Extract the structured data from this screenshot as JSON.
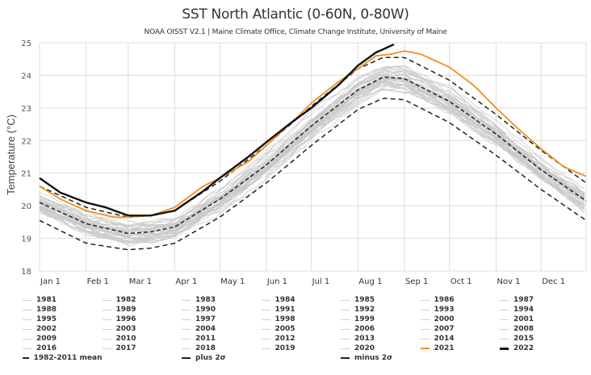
{
  "chart_data": {
    "type": "line",
    "title": "SST North Atlantic (0-60N, 0-80W)",
    "subtitle": "NOAA OISST V2.1 | Maine Climate Office, Climate Change Institute, University of Maine",
    "xlabel": "",
    "ylabel": "Temperature (°C)",
    "ylim": [
      18,
      25
    ],
    "xlim_day_of_year": [
      1,
      365
    ],
    "grid": true,
    "y_ticks": [
      "18",
      "19",
      "20",
      "21",
      "22",
      "23",
      "24",
      "25"
    ],
    "x_ticks": [
      {
        "label": "Jan 1",
        "day": 1
      },
      {
        "label": "Feb 1",
        "day": 32
      },
      {
        "label": "Mar 1",
        "day": 60
      },
      {
        "label": "Apr 1",
        "day": 91
      },
      {
        "label": "May 1",
        "day": 121
      },
      {
        "label": "Jun 1",
        "day": 152
      },
      {
        "label": "Jul 1",
        "day": 182
      },
      {
        "label": "Aug 1",
        "day": 213
      },
      {
        "label": "Sep 1",
        "day": 244
      },
      {
        "label": "Oct 1",
        "day": 274
      },
      {
        "label": "Nov 1",
        "day": 305
      },
      {
        "label": "Dec 1",
        "day": 335
      }
    ],
    "legend_position": "bottom",
    "series": [
      {
        "name": "1982-2011 mean",
        "style": "dashed",
        "color": "#222222",
        "x": [
          1,
          32,
          60,
          75,
          91,
          121,
          152,
          182,
          213,
          230,
          244,
          274,
          305,
          335,
          365
        ],
        "y": [
          20.1,
          19.45,
          19.15,
          19.2,
          19.35,
          20.2,
          21.25,
          22.45,
          23.55,
          23.95,
          23.9,
          23.2,
          22.2,
          21.1,
          20.15
        ]
      },
      {
        "name": "plus 2σ",
        "style": "dash-dot",
        "color": "#222222",
        "x": [
          1,
          32,
          60,
          75,
          91,
          121,
          152,
          182,
          213,
          230,
          244,
          274,
          305,
          335,
          365
        ],
        "y": [
          20.6,
          19.95,
          19.65,
          19.7,
          19.85,
          20.75,
          21.85,
          23.05,
          24.2,
          24.55,
          24.55,
          23.85,
          22.8,
          21.7,
          20.7
        ]
      },
      {
        "name": "minus 2σ",
        "style": "dash-dot",
        "color": "#222222",
        "x": [
          1,
          32,
          60,
          75,
          91,
          121,
          152,
          182,
          213,
          230,
          244,
          274,
          305,
          335,
          365
        ],
        "y": [
          19.55,
          18.85,
          18.65,
          18.7,
          18.85,
          19.65,
          20.7,
          21.85,
          22.95,
          23.3,
          23.25,
          22.55,
          21.55,
          20.5,
          19.55
        ]
      },
      {
        "name": "2021",
        "style": "solid",
        "color": "#f28e1c",
        "x": [
          1,
          15,
          32,
          50,
          60,
          75,
          91,
          110,
          121,
          140,
          152,
          170,
          182,
          200,
          213,
          225,
          235,
          244,
          255,
          274,
          290,
          305,
          320,
          335,
          350,
          365
        ],
        "y": [
          20.6,
          20.2,
          19.85,
          19.65,
          19.65,
          19.7,
          19.95,
          20.6,
          20.85,
          21.35,
          21.85,
          22.6,
          23.15,
          23.8,
          24.2,
          24.6,
          24.65,
          24.75,
          24.65,
          24.25,
          23.7,
          23.0,
          22.35,
          21.75,
          21.2,
          20.9
        ]
      },
      {
        "name": "2022",
        "style": "solid",
        "color": "#111111",
        "x": [
          1,
          15,
          32,
          45,
          60,
          75,
          91,
          110,
          121,
          140,
          152,
          170,
          182,
          200,
          213,
          225,
          237
        ],
        "y": [
          20.85,
          20.4,
          20.1,
          19.95,
          19.7,
          19.7,
          19.85,
          20.45,
          20.85,
          21.5,
          21.95,
          22.6,
          23.0,
          23.7,
          24.3,
          24.7,
          24.95
        ]
      }
    ],
    "background_years": [
      "1981",
      "1982",
      "1983",
      "1984",
      "1985",
      "1986",
      "1987",
      "1988",
      "1989",
      "1990",
      "1991",
      "1992",
      "1993",
      "1994",
      "1995",
      "1996",
      "1997",
      "1998",
      "1999",
      "2000",
      "2001",
      "2002",
      "2003",
      "2004",
      "2005",
      "2006",
      "2007",
      "2008",
      "2009",
      "2010",
      "2011",
      "2012",
      "2013",
      "2014",
      "2015",
      "2016",
      "2017",
      "2018",
      "2019",
      "2020"
    ],
    "background_color": "#c8c8c8"
  },
  "legend": {
    "rows": [
      [
        "1981",
        "1982",
        "1983",
        "1984",
        "1985",
        "1986",
        "1987"
      ],
      [
        "1988",
        "1989",
        "1990",
        "1991",
        "1992",
        "1993",
        "1994"
      ],
      [
        "1995",
        "1996",
        "1997",
        "1998",
        "1999",
        "2000",
        "2001"
      ],
      [
        "2002",
        "2003",
        "2004",
        "2005",
        "2006",
        "2007",
        "2008"
      ],
      [
        "2009",
        "2010",
        "2011",
        "2012",
        "2013",
        "2014",
        "2015"
      ],
      [
        "2016",
        "2017",
        "2018",
        "2019",
        "2020",
        "2021",
        "2022"
      ]
    ],
    "special": [
      "1982-2011 mean",
      "plus 2σ",
      "minus 2σ"
    ],
    "colors": {
      "default": "#d0d0d0",
      "2021": "#f28e1c",
      "2022": "#111111"
    }
  }
}
